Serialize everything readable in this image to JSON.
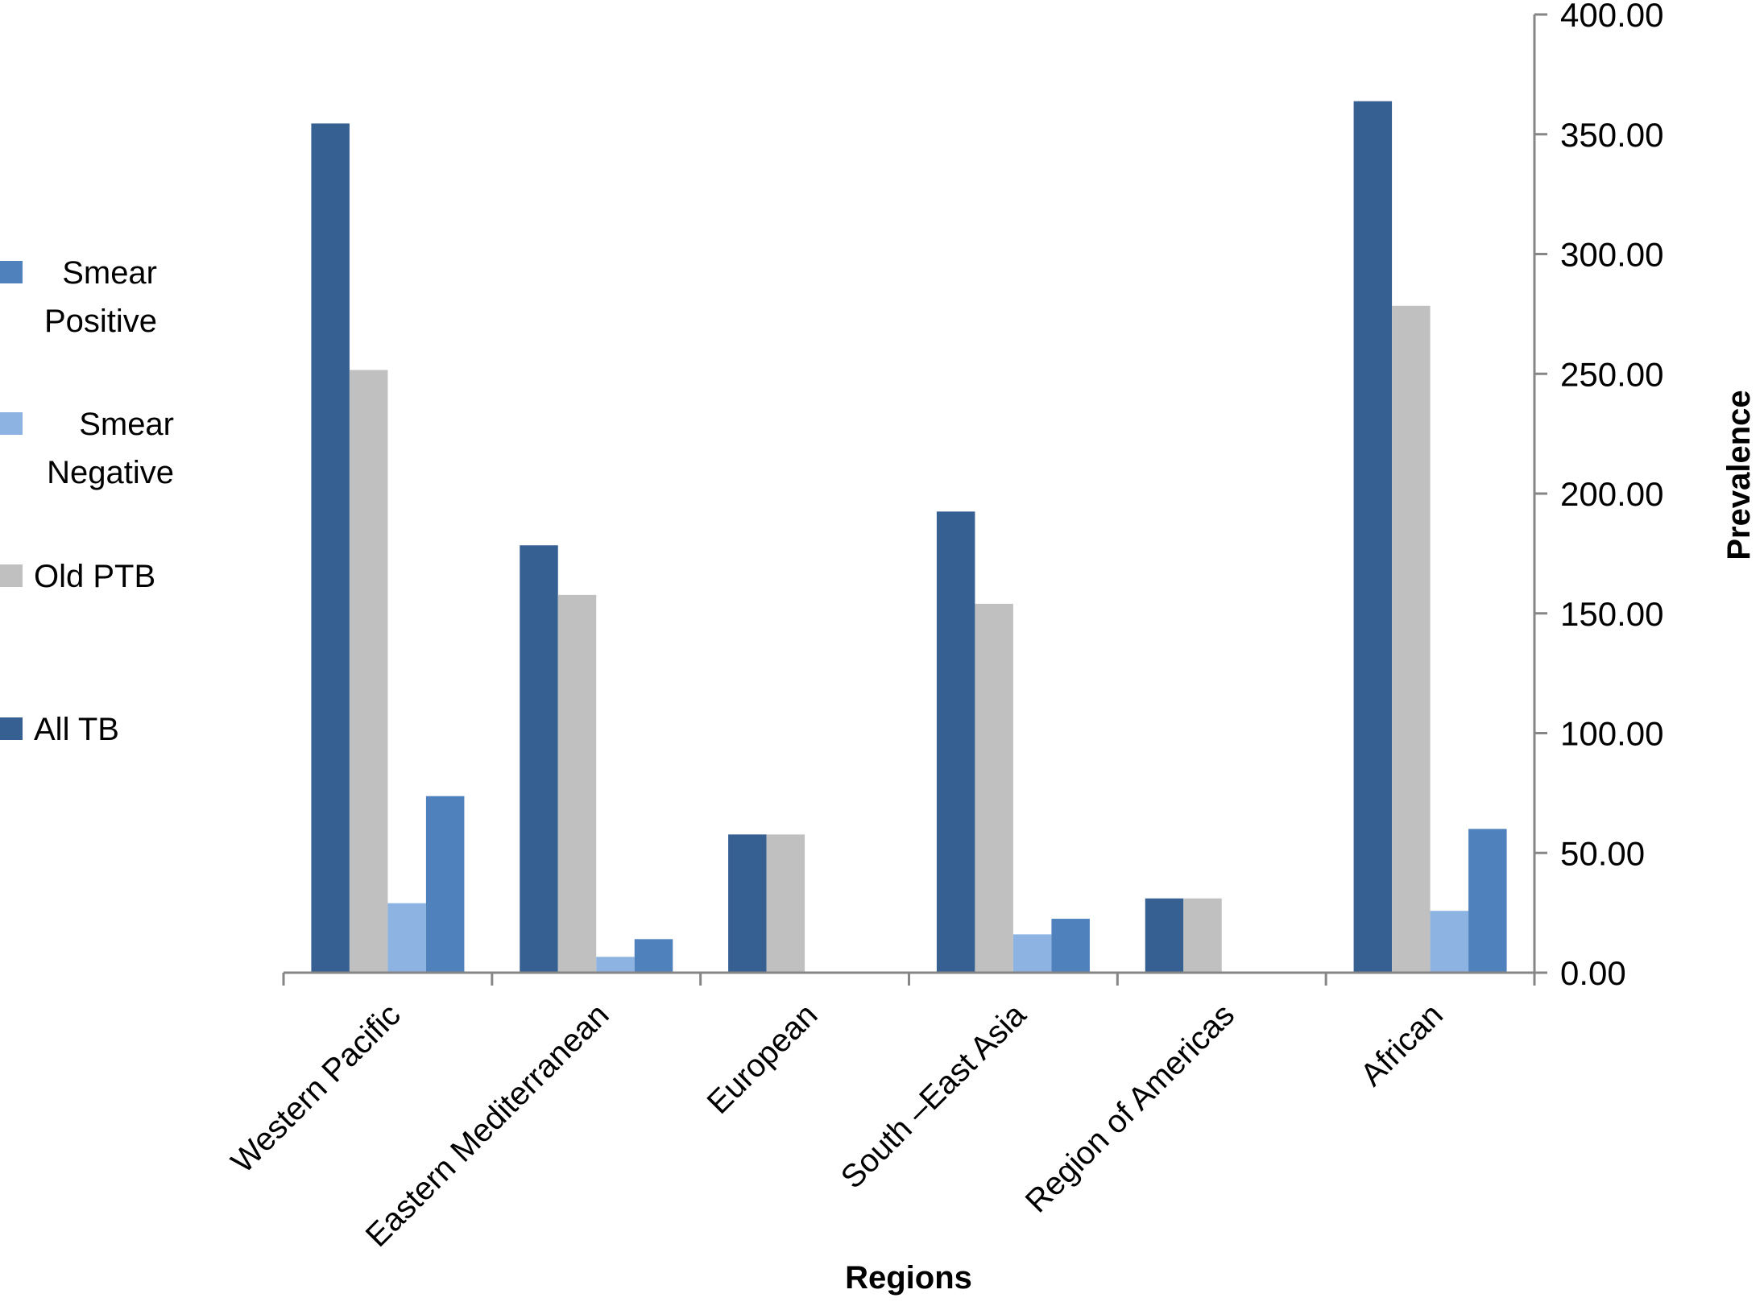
{
  "chart_data": {
    "type": "bar",
    "title": "",
    "xlabel": "Regions",
    "ylabel": "Prevalence",
    "ylim": [
      0,
      400
    ],
    "yticks": [
      "0.00",
      "50.00",
      "100.00",
      "150.00",
      "200.00",
      "250.00",
      "300.00",
      "350.00",
      "400.00"
    ],
    "y_axis_side": "right",
    "grid": false,
    "legend_placement": "left",
    "categories": [
      "Western Pacific",
      "Eastern Mediterranean",
      "European",
      "South –East Asia",
      "Region of Americas",
      "African"
    ],
    "series": [
      {
        "name": "All TB",
        "color": "#366092",
        "values": [
          354.5,
          178.4,
          57.7,
          192.5,
          31.0,
          363.8
        ]
      },
      {
        "name": "Old PTB",
        "color": "#c0c0c0",
        "values": [
          251.6,
          157.7,
          57.7,
          154.0,
          31.0,
          278.4
        ]
      },
      {
        "name": "Smear Negative",
        "color": "#8db3e2",
        "values": [
          29.0,
          6.6,
          0,
          16.0,
          0,
          25.8
        ]
      },
      {
        "name": "Smear Positive",
        "color": "#4f81bd",
        "values": [
          73.7,
          14.0,
          0,
          22.5,
          0,
          60.0
        ]
      }
    ],
    "legend": [
      {
        "series": "Smear Positive",
        "lines": [
          "Smear",
          "Positive"
        ],
        "color": "#4f81bd"
      },
      {
        "series": "Smear Negative",
        "lines": [
          "Smear",
          "Negative"
        ],
        "color": "#8db3e2"
      },
      {
        "series": "Old PTB",
        "lines": [
          "Old PTB"
        ],
        "color": "#c0c0c0"
      },
      {
        "series": "All TB",
        "lines": [
          "All TB"
        ],
        "color": "#366092"
      }
    ],
    "axis_color": "#868686"
  }
}
